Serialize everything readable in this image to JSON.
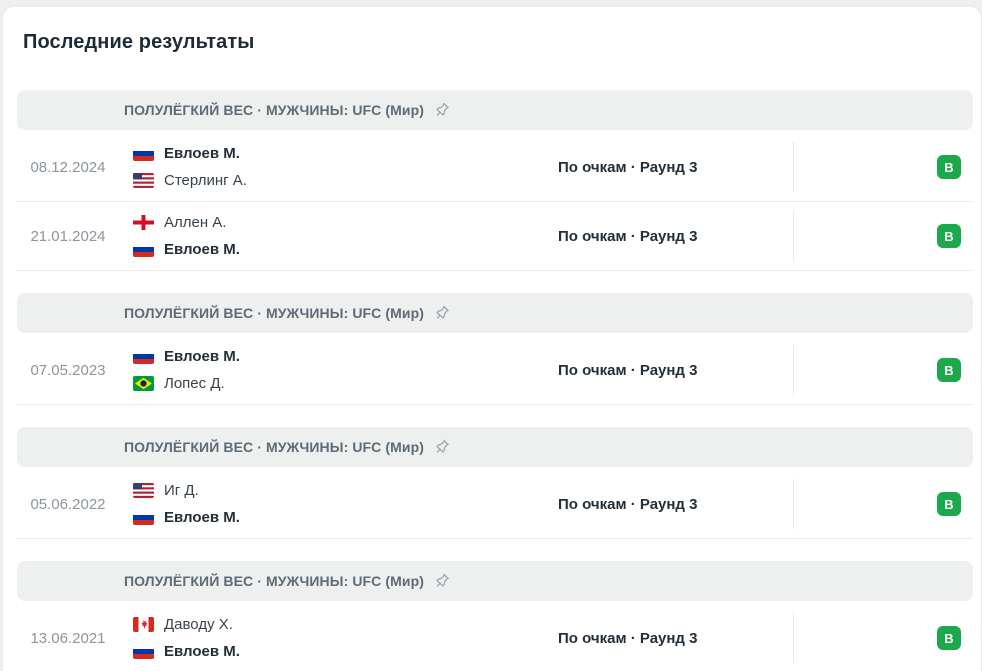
{
  "page_title": "Последние результаты",
  "badge": {
    "win_label": "В",
    "win_color": "#1ba94c"
  },
  "sections": [
    {
      "header": "ПОЛУЛЁГКИЙ ВЕС · МУЖЧИНЫ: UFC (Мир)",
      "matches": [
        {
          "date": "08.12.2024",
          "fighters": [
            {
              "name": "Евлоев М.",
              "flag": "russia",
              "winner": true
            },
            {
              "name": "Стерлинг А.",
              "flag": "usa",
              "winner": false
            }
          ],
          "result": "По очкам · Раунд 3",
          "outcome": "В"
        },
        {
          "date": "21.01.2024",
          "fighters": [
            {
              "name": "Аллен А.",
              "flag": "england",
              "winner": false
            },
            {
              "name": "Евлоев М.",
              "flag": "russia",
              "winner": true
            }
          ],
          "result": "По очкам · Раунд 3",
          "outcome": "В"
        }
      ]
    },
    {
      "header": "ПОЛУЛЁГКИЙ ВЕС · МУЖЧИНЫ: UFC (Мир)",
      "matches": [
        {
          "date": "07.05.2023",
          "fighters": [
            {
              "name": "Евлоев М.",
              "flag": "russia",
              "winner": true
            },
            {
              "name": "Лопес Д.",
              "flag": "brazil",
              "winner": false
            }
          ],
          "result": "По очкам · Раунд 3",
          "outcome": "В"
        }
      ]
    },
    {
      "header": "ПОЛУЛЁГКИЙ ВЕС · МУЖЧИНЫ: UFC (Мир)",
      "matches": [
        {
          "date": "05.06.2022",
          "fighters": [
            {
              "name": "Иг Д.",
              "flag": "usa",
              "winner": false
            },
            {
              "name": "Евлоев М.",
              "flag": "russia",
              "winner": true
            }
          ],
          "result": "По очкам · Раунд 3",
          "outcome": "В"
        }
      ]
    },
    {
      "header": "ПОЛУЛЁГКИЙ ВЕС · МУЖЧИНЫ: UFC (Мир)",
      "matches": [
        {
          "date": "13.06.2021",
          "fighters": [
            {
              "name": "Даводу Х.",
              "flag": "canada",
              "winner": false
            },
            {
              "name": "Евлоев М.",
              "flag": "russia",
              "winner": true
            }
          ],
          "result": "По очкам · Раунд 3",
          "outcome": "В"
        }
      ]
    }
  ]
}
